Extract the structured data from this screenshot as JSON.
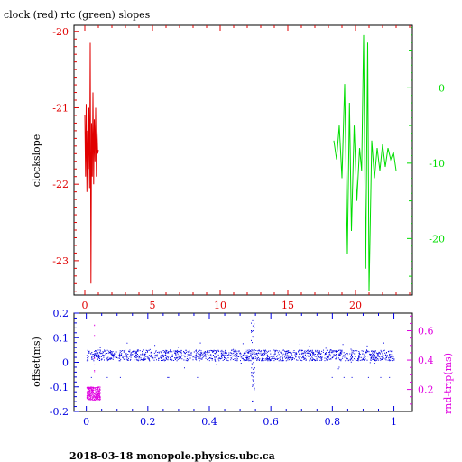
{
  "title": "clock (red) rtc (green) slopes",
  "footer": "2018-03-18  monopole.physics.ubc.ca",
  "colors": {
    "red": "#e00000",
    "green": "#00dd00",
    "blue": "#0000e0",
    "magenta": "#e000e0",
    "frame": "#000000"
  },
  "chart_data": [
    {
      "type": "line",
      "title": "clock (red) rtc (green) slopes",
      "ylabel": "clockslope",
      "xlim": [
        -0.8,
        24.2
      ],
      "ylim_left": [
        -23.45,
        -19.92
      ],
      "ylim_right": [
        -27.5,
        8.3
      ],
      "x_ticks": [
        "0",
        "5",
        "10",
        "15",
        "20"
      ],
      "x_tick_values": [
        0,
        5,
        10,
        15,
        20
      ],
      "y_left_ticks": [
        "-20",
        "-21",
        "-22",
        "-23"
      ],
      "y_left_tick_values": [
        -20,
        -21,
        -22,
        -23
      ],
      "y_right_ticks": [
        "0",
        "-10",
        "-20"
      ],
      "y_right_tick_values": [
        0,
        -10,
        -20
      ],
      "series": [
        {
          "axis": "left",
          "color": "#e00000",
          "x": [
            0.0,
            0.05,
            0.1,
            0.15,
            0.2,
            0.25,
            0.3,
            0.35,
            0.4,
            0.45,
            0.5,
            0.55,
            0.6,
            0.65,
            0.7,
            0.75,
            0.8,
            0.85,
            0.9,
            0.95,
            1.0
          ],
          "y": [
            -21.1,
            -21.9,
            -20.95,
            -22.1,
            -21.3,
            -21.8,
            -21.0,
            -22.05,
            -20.15,
            -23.3,
            -21.2,
            -21.9,
            -20.8,
            -22.0,
            -21.15,
            -21.7,
            -21.0,
            -21.9,
            -21.3,
            -21.6,
            -21.55
          ]
        },
        {
          "axis": "right",
          "color": "#00dd00",
          "x": [
            18.4,
            18.6,
            18.8,
            19.0,
            19.2,
            19.4,
            19.55,
            19.7,
            19.9,
            20.1,
            20.3,
            20.45,
            20.6,
            20.75,
            20.9,
            21.0,
            21.2,
            21.4,
            21.6,
            21.8,
            22.0,
            22.2,
            22.4,
            22.6,
            22.8,
            23.0
          ],
          "y": [
            -7.0,
            -9.5,
            -5.0,
            -12.0,
            0.5,
            -22.0,
            -2.0,
            -19.0,
            -5.0,
            -15.0,
            -8.0,
            -11.0,
            7.0,
            -24.0,
            6.0,
            -27.0,
            -7.0,
            -12.0,
            -8.0,
            -11.0,
            -7.5,
            -10.5,
            -8.0,
            -9.5,
            -8.5,
            -11.0
          ]
        }
      ]
    },
    {
      "type": "scatter",
      "ylabel_left": "offset(ms)",
      "ylabel_right": "rnd-trip(ms)",
      "xlim": [
        -0.04,
        1.06
      ],
      "ylim_left": [
        -0.2,
        0.2
      ],
      "ylim_right": [
        0.05,
        0.72
      ],
      "x_ticks": [
        "0",
        "0.2",
        "0.4",
        "0.6",
        "0.8",
        "1"
      ],
      "x_tick_values": [
        0,
        0.2,
        0.4,
        0.6,
        0.8,
        1.0
      ],
      "y_left_ticks": [
        "0.2",
        "0.1",
        "0",
        "-0.1",
        "-0.2"
      ],
      "y_left_tick_values": [
        0.2,
        0.1,
        0,
        -0.1,
        -0.2
      ],
      "y_right_ticks": [
        "0.6",
        "0.4",
        "0.2"
      ],
      "y_right_tick_values": [
        0.6,
        0.4,
        0.2
      ],
      "series": [
        {
          "axis": "left",
          "color": "#0000e0",
          "band": {
            "x_start": 0.0,
            "x_end": 1.0,
            "center": 0.03,
            "half_width": 0.022,
            "outlier_low": -0.06
          },
          "notch": {
            "x": 0.54,
            "min": -0.16,
            "max": 0.19
          }
        },
        {
          "axis": "right",
          "color": "#e000e0",
          "band": {
            "x_start": 0.0,
            "x_end": 0.045,
            "low": 0.13,
            "high": 0.22,
            "outlier_high": 0.67
          }
        }
      ]
    }
  ]
}
